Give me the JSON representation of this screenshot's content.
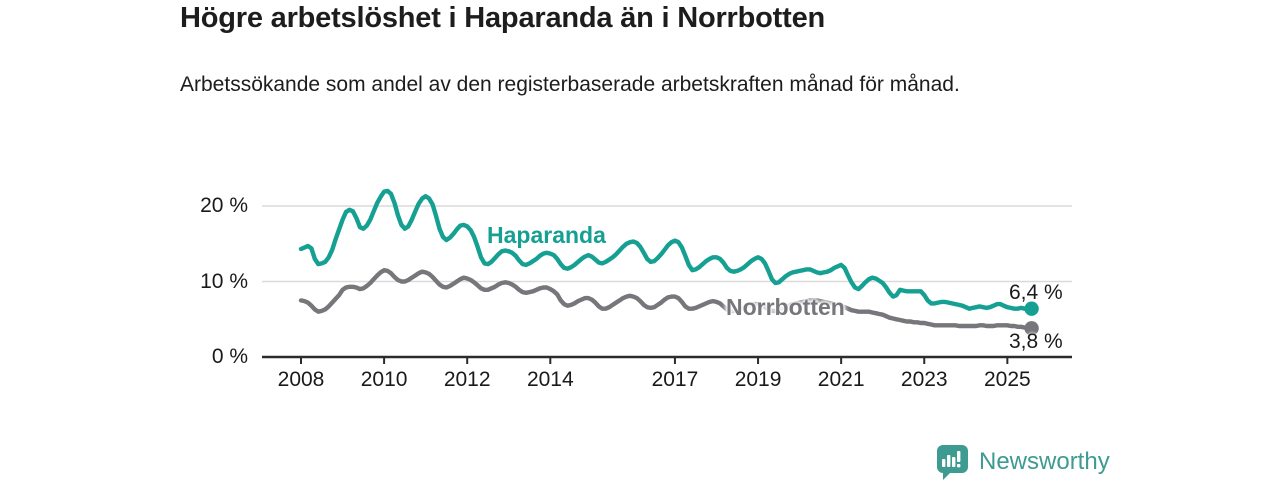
{
  "header": {
    "title": "Högre arbetslöshet i Haparanda än i Norrbotten",
    "subtitle": "Arbetssökande som andel av den registerbaserade arbetskraften månad för månad."
  },
  "chart_data": {
    "type": "line",
    "title": "Högre arbetslöshet i Haparanda än i Norrbotten",
    "subtitle": "Arbetssökande som andel av den registerbaserade arbetskraften månad för månad.",
    "unit": "%",
    "frequency": "monthly",
    "x_start": {
      "year": 2008,
      "month": 1
    },
    "x_end": {
      "year": 2025,
      "month": 8
    },
    "ylim": [
      0,
      23
    ],
    "grid": "horizontal",
    "legend": "inline-labels",
    "y_ticks": [
      {
        "value": 0,
        "label": "0 %"
      },
      {
        "value": 10,
        "label": "10 %"
      },
      {
        "value": 20,
        "label": "20 %"
      }
    ],
    "x_ticks": [
      {
        "value": 2008,
        "label": "2008"
      },
      {
        "value": 2010,
        "label": "2010"
      },
      {
        "value": 2012,
        "label": "2012"
      },
      {
        "value": 2014,
        "label": "2014"
      },
      {
        "value": 2017,
        "label": "2017"
      },
      {
        "value": 2019,
        "label": "2019"
      },
      {
        "value": 2021,
        "label": "2021"
      },
      {
        "value": 2023,
        "label": "2023"
      },
      {
        "value": 2025,
        "label": "2025"
      }
    ],
    "series": [
      {
        "name": "Haparanda",
        "color": "#16a093",
        "end_label": "6,4 %",
        "end_value": 6.4,
        "values": [
          14.3,
          14.5,
          14.7,
          14.4,
          13.0,
          12.3,
          12.4,
          12.6,
          13.2,
          14.2,
          15.6,
          16.9,
          18.2,
          19.2,
          19.5,
          19.3,
          18.4,
          17.2,
          17.0,
          17.4,
          18.2,
          19.3,
          20.4,
          21.2,
          21.9,
          22.0,
          21.6,
          20.4,
          18.8,
          17.5,
          17.0,
          17.3,
          18.2,
          19.3,
          20.3,
          21.0,
          21.3,
          21.0,
          20.2,
          18.7,
          17.0,
          15.9,
          15.5,
          15.8,
          16.3,
          16.9,
          17.4,
          17.5,
          17.3,
          16.8,
          15.9,
          14.6,
          13.2,
          12.4,
          12.3,
          12.6,
          13.1,
          13.6,
          14.0,
          14.1,
          14.0,
          13.8,
          13.4,
          12.8,
          12.3,
          12.2,
          12.4,
          12.7,
          13.0,
          13.4,
          13.7,
          13.8,
          13.7,
          13.5,
          13.0,
          12.3,
          11.8,
          11.7,
          11.9,
          12.2,
          12.6,
          13.0,
          13.3,
          13.5,
          13.3,
          12.9,
          12.5,
          12.4,
          12.6,
          12.9,
          13.2,
          13.6,
          14.1,
          14.6,
          15.0,
          15.2,
          15.3,
          15.1,
          14.6,
          13.8,
          13.0,
          12.6,
          12.7,
          13.1,
          13.6,
          14.2,
          14.8,
          15.2,
          15.4,
          15.2,
          14.5,
          13.4,
          12.2,
          11.5,
          11.6,
          11.9,
          12.3,
          12.7,
          13.0,
          13.2,
          13.2,
          13.0,
          12.5,
          11.8,
          11.4,
          11.3,
          11.4,
          11.6,
          11.9,
          12.3,
          12.7,
          13.0,
          13.2,
          13.0,
          12.4,
          11.4,
          10.3,
          9.8,
          9.9,
          10.3,
          10.7,
          11.0,
          11.2,
          11.3,
          11.4,
          11.5,
          11.6,
          11.6,
          11.4,
          11.2,
          11.1,
          11.2,
          11.3,
          11.5,
          11.8,
          12.0,
          12.2,
          11.8,
          10.8,
          9.9,
          9.2,
          9.0,
          9.4,
          9.9,
          10.3,
          10.5,
          10.4,
          10.1,
          9.8,
          9.2,
          8.5,
          8.0,
          8.2,
          8.9,
          8.8,
          8.7,
          8.7,
          8.7,
          8.7,
          8.7,
          8.2,
          7.5,
          7.1,
          7.1,
          7.2,
          7.3,
          7.3,
          7.2,
          7.1,
          7.0,
          6.9,
          6.8,
          6.6,
          6.4,
          6.5,
          6.6,
          6.7,
          6.6,
          6.5,
          6.6,
          6.8,
          7.0,
          7.0,
          6.8,
          6.6,
          6.5,
          6.4,
          6.4,
          6.5,
          6.4,
          6.3,
          6.4
        ]
      },
      {
        "name": "Norrbotten",
        "color": "#76767b",
        "end_label": "3,8 %",
        "end_value": 3.8,
        "values": [
          7.5,
          7.4,
          7.2,
          6.8,
          6.3,
          6.0,
          6.1,
          6.3,
          6.7,
          7.2,
          7.7,
          8.2,
          8.9,
          9.2,
          9.3,
          9.3,
          9.2,
          9.0,
          9.1,
          9.4,
          9.8,
          10.3,
          10.8,
          11.2,
          11.5,
          11.4,
          11.1,
          10.6,
          10.2,
          10.0,
          10.0,
          10.2,
          10.5,
          10.8,
          11.1,
          11.3,
          11.2,
          11.0,
          10.6,
          10.1,
          9.6,
          9.3,
          9.2,
          9.4,
          9.7,
          10.0,
          10.3,
          10.5,
          10.4,
          10.2,
          9.9,
          9.5,
          9.1,
          8.9,
          8.9,
          9.1,
          9.3,
          9.6,
          9.8,
          9.9,
          9.8,
          9.6,
          9.3,
          8.9,
          8.6,
          8.5,
          8.6,
          8.7,
          8.9,
          9.1,
          9.2,
          9.2,
          9.0,
          8.7,
          8.3,
          7.5,
          7.0,
          6.8,
          6.9,
          7.1,
          7.4,
          7.6,
          7.8,
          7.8,
          7.6,
          7.2,
          6.7,
          6.4,
          6.4,
          6.6,
          6.9,
          7.2,
          7.5,
          7.8,
          8.0,
          8.1,
          8.0,
          7.8,
          7.4,
          6.9,
          6.6,
          6.5,
          6.6,
          6.9,
          7.2,
          7.6,
          7.9,
          8.0,
          8.0,
          7.8,
          7.3,
          6.7,
          6.4,
          6.4,
          6.5,
          6.7,
          6.9,
          7.1,
          7.3,
          7.4,
          7.3,
          7.1,
          6.7,
          6.3,
          6.1,
          6.1,
          6.2,
          6.4,
          6.6,
          6.8,
          6.9,
          7.0,
          7.0,
          6.9,
          6.6,
          6.3,
          6.1,
          6.1,
          6.2,
          6.4,
          6.6,
          6.8,
          7.0,
          7.1,
          7.2,
          7.3,
          7.4,
          7.5,
          7.5,
          7.5,
          7.4,
          7.3,
          7.2,
          7.1,
          7.0,
          6.9,
          6.8,
          6.6,
          6.4,
          6.2,
          6.1,
          6.0,
          6.0,
          6.0,
          6.0,
          5.9,
          5.8,
          5.7,
          5.6,
          5.4,
          5.2,
          5.1,
          5.0,
          4.9,
          4.8,
          4.7,
          4.7,
          4.6,
          4.6,
          4.5,
          4.5,
          4.4,
          4.3,
          4.2,
          4.2,
          4.2,
          4.2,
          4.2,
          4.2,
          4.2,
          4.1,
          4.1,
          4.1,
          4.1,
          4.1,
          4.1,
          4.2,
          4.2,
          4.1,
          4.1,
          4.1,
          4.2,
          4.2,
          4.2,
          4.2,
          4.1,
          4.1,
          4.0,
          4.0,
          3.9,
          3.8,
          3.8
        ]
      }
    ]
  },
  "footer": {
    "brand": "Newsworthy",
    "logo_icon": "bar-chart-speech-bubble-icon"
  },
  "colors": {
    "accent_teal": "#16a093",
    "series_gray": "#76767b",
    "grid": "#dadada",
    "axis": "#2b2b2b",
    "text": "#1a1a1a",
    "logo_teal": "#3e9b92",
    "background": "#ffffff"
  }
}
